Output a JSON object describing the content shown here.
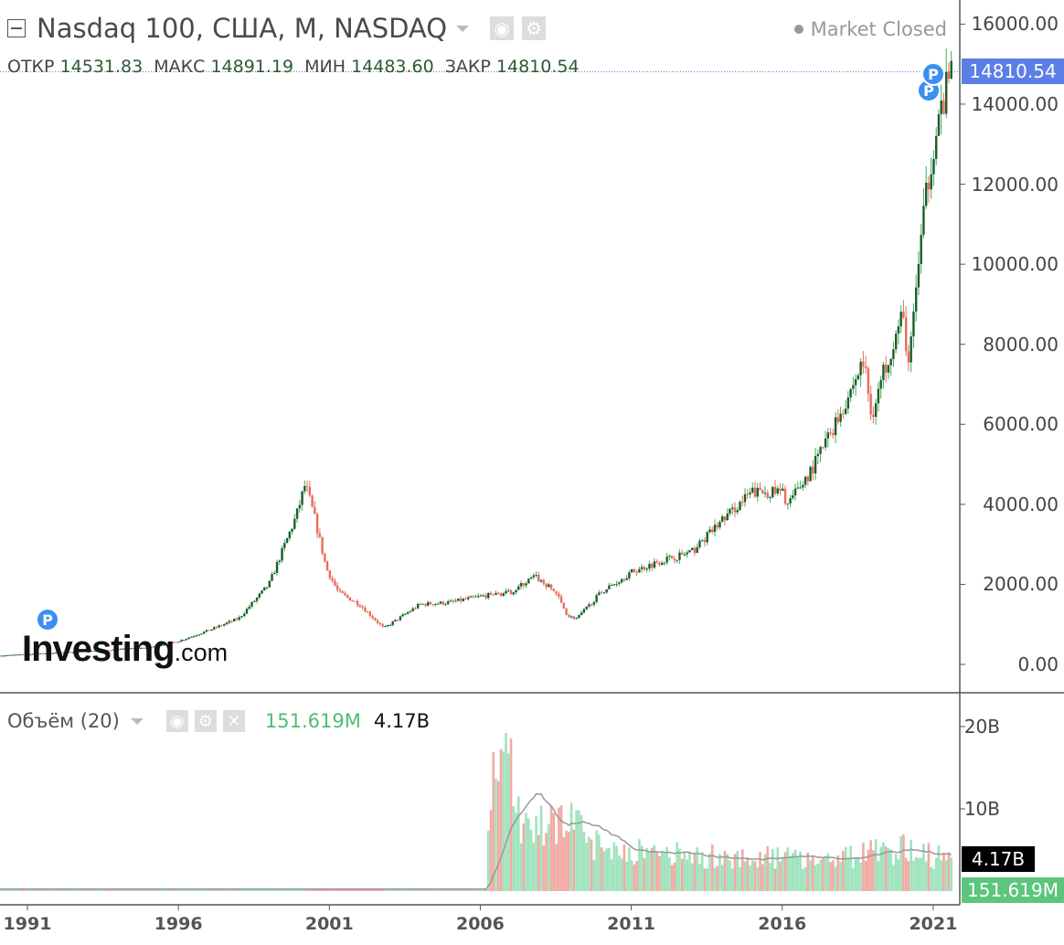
{
  "header": {
    "title": "Nasdaq 100, США, M, NASDAQ",
    "market_status": "Market Closed"
  },
  "ohlc": {
    "open_label": "ОТКР",
    "open": "14531.83",
    "high_label": "МАКС",
    "high": "14891.19",
    "low_label": "МИН",
    "low": "14483.60",
    "close_label": "ЗАКР",
    "close": "14810.54"
  },
  "volume_header": {
    "title": "Объём (20)",
    "volume": "151.619M",
    "ma": "4.17B"
  },
  "watermark": {
    "brand": "Investing",
    "suffix": ".com"
  },
  "marker_label": "P",
  "colors": {
    "up": "#1e5c2a",
    "up_wick": "#3cae5c",
    "down": "#e86c5e",
    "vol_up": "#9fe3bd",
    "vol_down": "#f2aaa3",
    "ma": "#999999",
    "last_price": "#5b7fe6",
    "last_vol": "#5cc67c"
  },
  "chart_data": [
    {
      "type": "candlestick",
      "title": "Nasdaq 100, США, M, NASDAQ",
      "interval": "monthly",
      "x_ticks": [
        "1991",
        "1996",
        "2001",
        "2006",
        "2011",
        "2016",
        "2021"
      ],
      "y_ticks": [
        "0.00",
        "2000.00",
        "4000.00",
        "6000.00",
        "8000.00",
        "10000.00",
        "12000.00",
        "14000.00",
        "16000.00"
      ],
      "ylim": [
        0,
        16000
      ],
      "xlim": [
        1990.1,
        2021.9
      ],
      "last_price": "14810.54",
      "last_price_value": 14810.54,
      "approx_close_path": [
        [
          1990.1,
          220
        ],
        [
          1993,
          330
        ],
        [
          1995,
          420
        ],
        [
          1996,
          580
        ],
        [
          1997,
          850
        ],
        [
          1998,
          1150
        ],
        [
          1999,
          2000
        ],
        [
          1999.9,
          3700
        ],
        [
          2000.2,
          4500
        ],
        [
          2000.5,
          3700
        ],
        [
          2000.9,
          2400
        ],
        [
          2001.3,
          1800
        ],
        [
          2002,
          1500
        ],
        [
          2002.8,
          900
        ],
        [
          2003.5,
          1250
        ],
        [
          2004,
          1500
        ],
        [
          2005,
          1550
        ],
        [
          2006,
          1700
        ],
        [
          2007,
          1800
        ],
        [
          2007.8,
          2200
        ],
        [
          2008.5,
          1800
        ],
        [
          2008.9,
          1200
        ],
        [
          2009.2,
          1150
        ],
        [
          2010,
          1800
        ],
        [
          2011,
          2300
        ],
        [
          2012,
          2600
        ],
        [
          2013,
          2800
        ],
        [
          2014,
          3600
        ],
        [
          2015,
          4300
        ],
        [
          2016,
          4300
        ],
        [
          2016.2,
          4000
        ],
        [
          2017,
          4900
        ],
        [
          2018,
          6400
        ],
        [
          2018.7,
          7600
        ],
        [
          2018.95,
          6200
        ],
        [
          2019.5,
          7700
        ],
        [
          2020,
          8700
        ],
        [
          2020.2,
          7400
        ],
        [
          2020.5,
          10000
        ],
        [
          2020.9,
          12500
        ],
        [
          2021,
          13000
        ],
        [
          2021.6,
          14810
        ]
      ]
    },
    {
      "type": "bar",
      "title": "Объём (20)",
      "y_ticks": [
        "10B",
        "20B"
      ],
      "ylim": [
        0,
        23
      ],
      "unit": "B",
      "last_volume": "151.619M",
      "last_ma": "4.17B",
      "approx_volume_path": [
        [
          1990.1,
          0.25
        ],
        [
          2006.2,
          0.25
        ],
        [
          2006.4,
          17
        ],
        [
          2007.0,
          16
        ],
        [
          2007.3,
          9
        ],
        [
          2008.0,
          8
        ],
        [
          2008.8,
          10
        ],
        [
          2009.5,
          6.5
        ],
        [
          2010.5,
          5.5
        ],
        [
          2011.5,
          5
        ],
        [
          2013,
          4.5
        ],
        [
          2015,
          4.3
        ],
        [
          2018,
          4.3
        ],
        [
          2020.2,
          5.5
        ],
        [
          2021,
          4.5
        ],
        [
          2021.6,
          4.0
        ]
      ]
    }
  ]
}
